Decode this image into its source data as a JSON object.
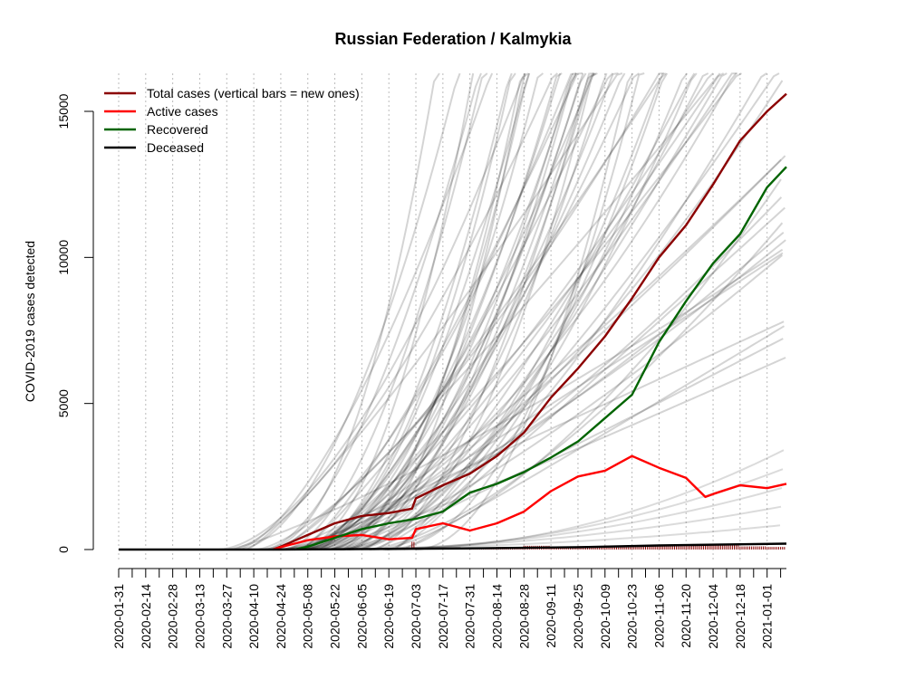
{
  "chart_data": {
    "type": "line",
    "title": "Russian Federation / Kalmykia",
    "xlabel": "",
    "ylabel": "COVID-2019 cases detected",
    "xlim": [
      "2020-01-31",
      "2021-01-11"
    ],
    "ylim": [
      -400,
      16200
    ],
    "y_ticks": [
      0,
      5000,
      10000,
      15000
    ],
    "x_tick_labels": [
      "2020-01-31",
      "2020-02-14",
      "2020-02-28",
      "2020-03-13",
      "2020-03-27",
      "2020-04-10",
      "2020-04-24",
      "2020-05-08",
      "2020-05-22",
      "2020-06-05",
      "2020-06-19",
      "2020-07-03",
      "2020-07-17",
      "2020-07-31",
      "2020-08-14",
      "2020-08-28",
      "2020-09-11",
      "2020-09-25",
      "2020-10-09",
      "2020-10-23",
      "2020-11-06",
      "2020-11-20",
      "2020-12-04",
      "2020-12-18",
      "2021-01-01"
    ],
    "grid": "vertical dotted lines at labeled dates",
    "legend_position": "top-left",
    "legend": [
      {
        "label": "Total cases (vertical bars = new ones)",
        "color": "#8b0000"
      },
      {
        "label": "Active cases",
        "color": "#ff0000"
      },
      {
        "label": "Recovered",
        "color": "#006400"
      },
      {
        "label": "Deceased",
        "color": "#000000"
      }
    ],
    "series": [
      {
        "name": "Total cases (vertical bars = new ones)",
        "color": "#8b0000",
        "points": [
          [
            "2020-04-20",
            0
          ],
          [
            "2020-04-24",
            100
          ],
          [
            "2020-05-08",
            500
          ],
          [
            "2020-05-22",
            900
          ],
          [
            "2020-06-05",
            1150
          ],
          [
            "2020-06-19",
            1250
          ],
          [
            "2020-07-01",
            1400
          ],
          [
            "2020-07-03",
            1750
          ],
          [
            "2020-07-17",
            2200
          ],
          [
            "2020-07-31",
            2600
          ],
          [
            "2020-08-14",
            3200
          ],
          [
            "2020-08-28",
            4000
          ],
          [
            "2020-09-11",
            5200
          ],
          [
            "2020-09-25",
            6200
          ],
          [
            "2020-10-09",
            7300
          ],
          [
            "2020-10-23",
            8600
          ],
          [
            "2020-11-06",
            10000
          ],
          [
            "2020-11-20",
            11100
          ],
          [
            "2020-12-04",
            12500
          ],
          [
            "2020-12-18",
            14000
          ],
          [
            "2021-01-01",
            15000
          ],
          [
            "2021-01-11",
            15600
          ]
        ]
      },
      {
        "name": "Active cases",
        "color": "#ff0000",
        "points": [
          [
            "2020-04-20",
            0
          ],
          [
            "2020-04-24",
            80
          ],
          [
            "2020-05-08",
            320
          ],
          [
            "2020-05-22",
            450
          ],
          [
            "2020-06-05",
            500
          ],
          [
            "2020-06-19",
            350
          ],
          [
            "2020-07-01",
            400
          ],
          [
            "2020-07-03",
            700
          ],
          [
            "2020-07-17",
            900
          ],
          [
            "2020-07-31",
            650
          ],
          [
            "2020-08-14",
            900
          ],
          [
            "2020-08-28",
            1300
          ],
          [
            "2020-09-11",
            2000
          ],
          [
            "2020-09-25",
            2500
          ],
          [
            "2020-10-09",
            2700
          ],
          [
            "2020-10-23",
            3200
          ],
          [
            "2020-11-06",
            2800
          ],
          [
            "2020-11-20",
            2450
          ],
          [
            "2020-11-30",
            1800
          ],
          [
            "2020-12-04",
            1900
          ],
          [
            "2020-12-18",
            2200
          ],
          [
            "2021-01-01",
            2100
          ],
          [
            "2021-01-11",
            2250
          ]
        ]
      },
      {
        "name": "Recovered",
        "color": "#006400",
        "points": [
          [
            "2020-05-01",
            0
          ],
          [
            "2020-05-08",
            100
          ],
          [
            "2020-05-22",
            400
          ],
          [
            "2020-06-05",
            700
          ],
          [
            "2020-06-19",
            900
          ],
          [
            "2020-07-03",
            1050
          ],
          [
            "2020-07-17",
            1300
          ],
          [
            "2020-07-31",
            1950
          ],
          [
            "2020-08-14",
            2250
          ],
          [
            "2020-08-28",
            2650
          ],
          [
            "2020-09-11",
            3150
          ],
          [
            "2020-09-25",
            3700
          ],
          [
            "2020-10-09",
            4500
          ],
          [
            "2020-10-23",
            5300
          ],
          [
            "2020-11-06",
            7100
          ],
          [
            "2020-11-20",
            8500
          ],
          [
            "2020-12-04",
            9800
          ],
          [
            "2020-12-18",
            10800
          ],
          [
            "2021-01-01",
            12400
          ],
          [
            "2021-01-11",
            13100
          ]
        ]
      },
      {
        "name": "Deceased",
        "color": "#000000",
        "points": [
          [
            "2020-01-31",
            0
          ],
          [
            "2020-04-24",
            0
          ],
          [
            "2020-06-05",
            20
          ],
          [
            "2020-07-31",
            40
          ],
          [
            "2020-09-25",
            80
          ],
          [
            "2020-11-06",
            140
          ],
          [
            "2020-12-18",
            180
          ],
          [
            "2021-01-11",
            200
          ]
        ]
      }
    ]
  }
}
